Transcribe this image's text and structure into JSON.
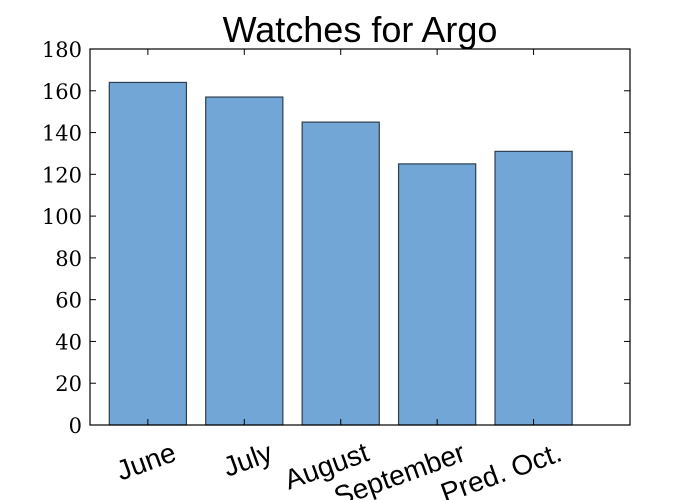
{
  "chart_data": {
    "type": "bar",
    "title": "Watches for Argo",
    "xlabel": "",
    "ylabel": "",
    "categories": [
      "June",
      "July",
      "August",
      "September",
      "Pred. Oct."
    ],
    "values": [
      164,
      157,
      145,
      125,
      131
    ],
    "ylim": [
      0,
      180
    ],
    "yticks": [
      0,
      20,
      40,
      60,
      80,
      100,
      120,
      140,
      160,
      180
    ],
    "ytick_labels": [
      "0",
      "20",
      "40",
      "60",
      "80",
      "100",
      "120",
      "140",
      "160",
      "180"
    ],
    "bar_color": "#72a6d6",
    "bar_edge_color": "#2f3f4f",
    "grid": false,
    "legend": "none",
    "category_label_rotation_deg": -20
  }
}
